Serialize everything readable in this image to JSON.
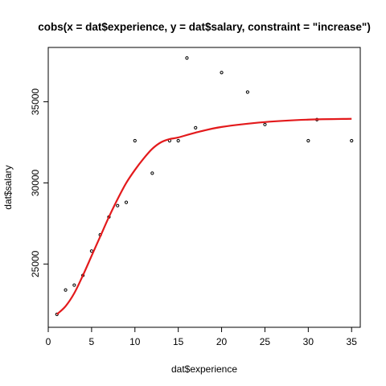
{
  "chart_data": {
    "type": "scatter",
    "title": "cobs(x = dat$experience, y = dat$salary, constraint = \"increase\")",
    "xlabel": "dat$experience",
    "ylabel": "dat$salary",
    "xlim": [
      0,
      36
    ],
    "ylim": [
      21100,
      38350
    ],
    "x_ticks": [
      0,
      5,
      10,
      15,
      20,
      25,
      30,
      35
    ],
    "y_ticks": [
      25000,
      30000,
      35000
    ],
    "grid": false,
    "points": [
      {
        "x": 1,
        "y": 21900
      },
      {
        "x": 2,
        "y": 23400
      },
      {
        "x": 3,
        "y": 23700
      },
      {
        "x": 4,
        "y": 24300
      },
      {
        "x": 5,
        "y": 25800
      },
      {
        "x": 6,
        "y": 26800
      },
      {
        "x": 7,
        "y": 27900
      },
      {
        "x": 8,
        "y": 28600
      },
      {
        "x": 9,
        "y": 28800
      },
      {
        "x": 10,
        "y": 32600
      },
      {
        "x": 12,
        "y": 30600
      },
      {
        "x": 14,
        "y": 32600
      },
      {
        "x": 15,
        "y": 32600
      },
      {
        "x": 16,
        "y": 37700
      },
      {
        "x": 17,
        "y": 33400
      },
      {
        "x": 20,
        "y": 36800
      },
      {
        "x": 23,
        "y": 35600
      },
      {
        "x": 25,
        "y": 33600
      },
      {
        "x": 30,
        "y": 32600
      },
      {
        "x": 31,
        "y": 33900
      },
      {
        "x": 35,
        "y": 32600
      }
    ],
    "fit_curve": {
      "color": "#e31a1c",
      "x": [
        1,
        2,
        3,
        4,
        5,
        6,
        7,
        8,
        9,
        10,
        11,
        12,
        13,
        14,
        15,
        17,
        20,
        25,
        30,
        35
      ],
      "y": [
        21900,
        22400,
        23200,
        24300,
        25500,
        26700,
        27900,
        29000,
        30000,
        30800,
        31500,
        32100,
        32500,
        32700,
        32800,
        33100,
        33450,
        33750,
        33900,
        33950
      ]
    },
    "point_color": "#000000"
  }
}
